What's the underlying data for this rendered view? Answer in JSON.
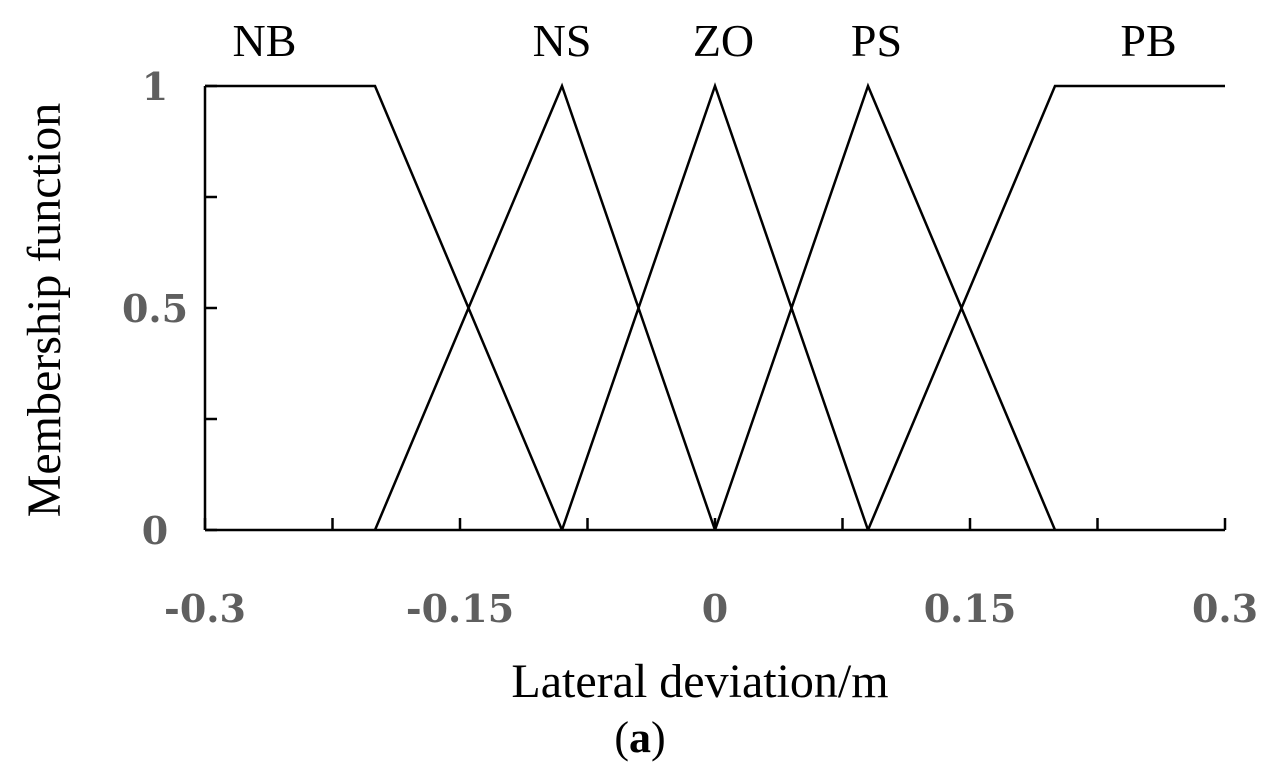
{
  "chart_data": {
    "type": "line",
    "xlabel": "Lateral deviation/m",
    "ylabel": "Membership function",
    "caption": {
      "open": "(",
      "letter": "a",
      "close": ")"
    },
    "xlim": [
      -0.3,
      0.3
    ],
    "ylim": [
      0,
      1
    ],
    "xticks": [
      {
        "value": -0.3,
        "label": "-0.3"
      },
      {
        "value": -0.15,
        "label": "-0.15"
      },
      {
        "value": 0,
        "label": "0"
      },
      {
        "value": 0.15,
        "label": "0.15"
      },
      {
        "value": 0.3,
        "label": "0.3"
      }
    ],
    "xminor_ticks": [
      -0.225,
      -0.075,
      0.075,
      0.225
    ],
    "yticks": [
      {
        "value": 0,
        "label": "0"
      },
      {
        "value": 0.5,
        "label": "0.5"
      },
      {
        "value": 1,
        "label": "1"
      }
    ],
    "yminor_ticks": [
      0.25,
      0.75
    ],
    "grid": false,
    "line_color": "#000000",
    "series": [
      {
        "name": "NB",
        "x": [
          -0.3,
          -0.2,
          -0.09
        ],
        "y": [
          1,
          1,
          0
        ],
        "label_x": -0.265
      },
      {
        "name": "NS",
        "x": [
          -0.2,
          -0.09,
          0
        ],
        "y": [
          0,
          1,
          0
        ],
        "label_x": -0.09
      },
      {
        "name": "ZO",
        "x": [
          -0.09,
          0,
          0.09
        ],
        "y": [
          0,
          1,
          0
        ],
        "label_x": 0.005
      },
      {
        "name": "PS",
        "x": [
          0,
          0.09,
          0.2
        ],
        "y": [
          0,
          1,
          0
        ],
        "label_x": 0.095
      },
      {
        "name": "PB",
        "x": [
          0.09,
          0.2,
          0.3
        ],
        "y": [
          0,
          1,
          1
        ],
        "label_x": 0.255
      }
    ]
  }
}
